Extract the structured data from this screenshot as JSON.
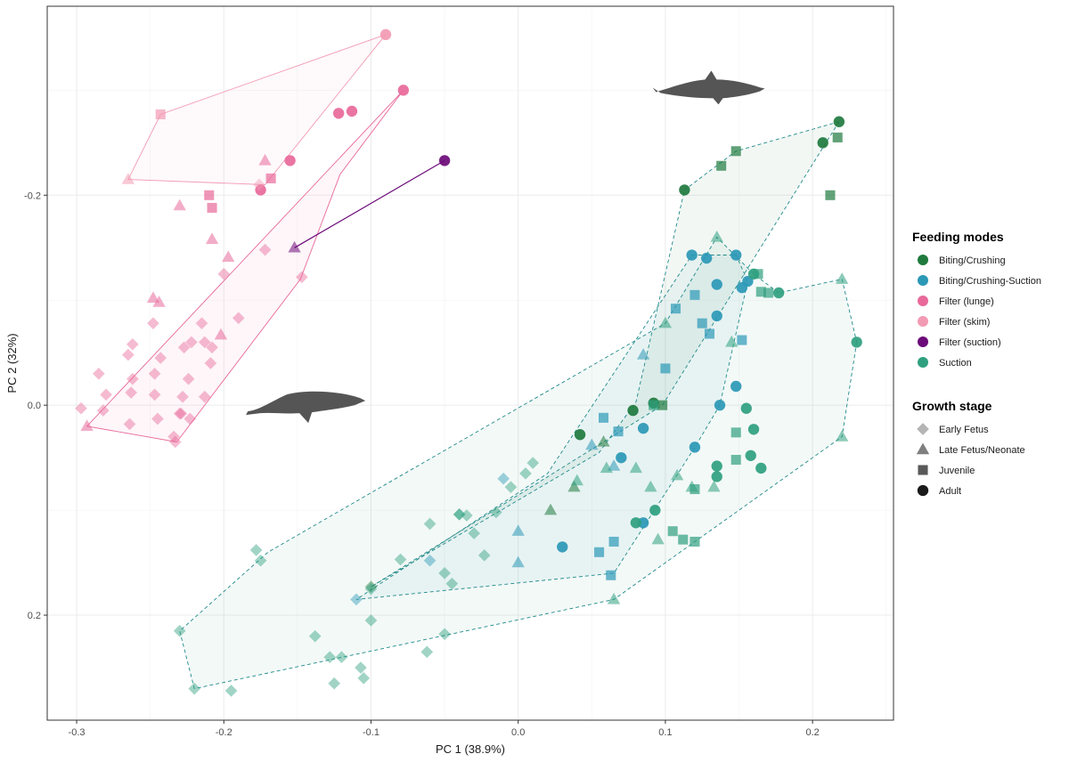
{
  "chart_data": {
    "type": "scatter",
    "title": "",
    "xlabel": "PC 1 (38.9%)",
    "ylabel": "PC 2 (32%)",
    "xlim": [
      -0.32,
      0.255
    ],
    "ylim": [
      -0.38,
      0.3
    ],
    "y_reversed": true,
    "x_ticks": [
      -0.3,
      -0.2,
      -0.1,
      0.0,
      0.1,
      0.2
    ],
    "x_tick_labels": [
      "-0.3",
      "-0.2",
      "-0.1",
      "0.0",
      "0.1",
      "0.2"
    ],
    "y_ticks": [
      -0.2,
      0.0,
      0.2
    ],
    "y_tick_labels": [
      "-0.2",
      "0.0",
      "0.2"
    ],
    "grid": true,
    "legend_position": "right",
    "legends": [
      {
        "title": "Feeding modes",
        "items": [
          {
            "label": "Biting/Crushing",
            "color": "#1f7a3e"
          },
          {
            "label": "Biting/Crushing-Suction",
            "color": "#2b98b6"
          },
          {
            "label": "Filter (lunge)",
            "color": "#e8699a"
          },
          {
            "label": "Filter (skim)",
            "color": "#f29ab3"
          },
          {
            "label": "Filter (suction)",
            "color": "#6b0a78"
          },
          {
            "label": "Suction",
            "color": "#2fa07f"
          }
        ]
      },
      {
        "title": "Growth stage",
        "items": [
          {
            "label": "Early Fetus",
            "shape": "diamond",
            "color": "#b5b5b5"
          },
          {
            "label": "Late Fetus/Neonate",
            "shape": "triangle",
            "color": "#7f7f7f"
          },
          {
            "label": "Juvenile",
            "shape": "square",
            "color": "#595959"
          },
          {
            "label": "Adult",
            "shape": "circle",
            "color": "#1a1a1a"
          }
        ]
      }
    ],
    "silhouettes": [
      {
        "name": "dolphin",
        "x": 0.13,
        "y": -0.3
      },
      {
        "name": "whale",
        "x": -0.145,
        "y": 0.0
      }
    ],
    "stage_opacity": {
      "diamond": 0.45,
      "triangle": 0.55,
      "square": 0.7,
      "circle": 0.92
    },
    "series": [
      {
        "name": "Filter (lunge)",
        "color": "#e8699a",
        "hull_style": "solid",
        "hull": [
          [
            -0.078,
            -0.3
          ],
          [
            -0.293,
            0.02
          ],
          [
            -0.232,
            0.035
          ],
          [
            -0.148,
            -0.12
          ],
          [
            -0.121,
            -0.22
          ]
        ],
        "points": [
          [
            -0.078,
            -0.3,
            "circle"
          ],
          [
            -0.113,
            -0.28,
            "circle"
          ],
          [
            -0.122,
            -0.278,
            "circle"
          ],
          [
            -0.175,
            -0.205,
            "circle"
          ],
          [
            -0.155,
            -0.233,
            "circle"
          ],
          [
            -0.21,
            -0.2,
            "square"
          ],
          [
            -0.208,
            -0.188,
            "square"
          ],
          [
            -0.168,
            -0.216,
            "square"
          ],
          [
            -0.23,
            -0.19,
            "triangle"
          ],
          [
            -0.172,
            -0.233,
            "triangle"
          ],
          [
            -0.208,
            -0.158,
            "triangle"
          ],
          [
            -0.197,
            -0.141,
            "triangle"
          ],
          [
            -0.248,
            -0.102,
            "triangle"
          ],
          [
            -0.244,
            -0.098,
            "triangle"
          ],
          [
            -0.202,
            -0.067,
            "triangle"
          ],
          [
            -0.293,
            0.02,
            "triangle"
          ],
          [
            -0.172,
            -0.148,
            "diamond"
          ],
          [
            -0.147,
            -0.122,
            "diamond"
          ],
          [
            -0.2,
            -0.125,
            "diamond"
          ],
          [
            -0.19,
            -0.083,
            "diamond"
          ],
          [
            -0.215,
            -0.078,
            "diamond"
          ],
          [
            -0.248,
            -0.078,
            "diamond"
          ],
          [
            -0.213,
            -0.06,
            "diamond"
          ],
          [
            -0.222,
            -0.06,
            "diamond"
          ],
          [
            -0.262,
            -0.058,
            "diamond"
          ],
          [
            -0.208,
            -0.055,
            "diamond"
          ],
          [
            -0.227,
            -0.055,
            "diamond"
          ],
          [
            -0.265,
            -0.048,
            "diamond"
          ],
          [
            -0.243,
            -0.045,
            "diamond"
          ],
          [
            -0.209,
            -0.04,
            "diamond"
          ],
          [
            -0.285,
            -0.03,
            "diamond"
          ],
          [
            -0.262,
            -0.025,
            "diamond"
          ],
          [
            -0.247,
            -0.03,
            "diamond"
          ],
          [
            -0.224,
            -0.025,
            "diamond"
          ],
          [
            -0.263,
            -0.012,
            "diamond"
          ],
          [
            -0.247,
            -0.01,
            "diamond"
          ],
          [
            -0.228,
            -0.008,
            "diamond"
          ],
          [
            -0.213,
            -0.008,
            "diamond"
          ],
          [
            -0.229,
            0.008,
            "diamond"
          ],
          [
            -0.23,
            0.008,
            "diamond"
          ],
          [
            -0.28,
            -0.01,
            "diamond"
          ],
          [
            -0.282,
            0.005,
            "diamond"
          ],
          [
            -0.264,
            0.018,
            "diamond"
          ],
          [
            -0.245,
            0.013,
            "diamond"
          ],
          [
            -0.234,
            0.03,
            "diamond"
          ],
          [
            -0.223,
            0.013,
            "diamond"
          ],
          [
            -0.233,
            0.035,
            "diamond"
          ],
          [
            -0.297,
            0.003,
            "diamond"
          ]
        ]
      },
      {
        "name": "Filter (skim)",
        "color": "#f29ab3",
        "hull_style": "solid",
        "hull": [
          [
            -0.09,
            -0.353
          ],
          [
            -0.243,
            -0.277
          ],
          [
            -0.265,
            -0.215
          ],
          [
            -0.172,
            -0.21
          ]
        ],
        "points": [
          [
            -0.09,
            -0.353,
            "circle"
          ],
          [
            -0.243,
            -0.277,
            "square"
          ],
          [
            -0.265,
            -0.215,
            "triangle"
          ],
          [
            -0.176,
            -0.21,
            "diamond"
          ]
        ]
      },
      {
        "name": "Filter (suction)",
        "color": "#6b0a78",
        "hull_style": "line",
        "hull": [
          [
            -0.05,
            -0.233
          ],
          [
            -0.152,
            -0.15
          ]
        ],
        "points": [
          [
            -0.05,
            -0.233,
            "circle"
          ],
          [
            -0.152,
            -0.15,
            "triangle"
          ]
        ]
      },
      {
        "name": "Biting/Crushing",
        "color": "#1f7a3e",
        "hull_style": "dashed",
        "hull": [
          [
            0.218,
            -0.27
          ],
          [
            0.148,
            -0.242
          ],
          [
            0.113,
            -0.205
          ],
          [
            0.08,
            -0.003
          ],
          [
            0.055,
            0.045
          ],
          [
            -0.1,
            0.173
          ],
          [
            0.098,
            0.0
          ]
        ],
        "points": [
          [
            0.218,
            -0.27,
            "circle"
          ],
          [
            0.207,
            -0.25,
            "circle"
          ],
          [
            0.113,
            -0.205,
            "circle"
          ],
          [
            0.217,
            -0.255,
            "square"
          ],
          [
            0.148,
            -0.242,
            "square"
          ],
          [
            0.138,
            -0.228,
            "square"
          ],
          [
            0.212,
            -0.2,
            "square"
          ],
          [
            0.098,
            0.0,
            "square"
          ],
          [
            0.078,
            0.005,
            "circle"
          ],
          [
            0.042,
            0.028,
            "circle"
          ],
          [
            0.092,
            -0.002,
            "circle"
          ],
          [
            0.058,
            0.035,
            "triangle"
          ],
          [
            0.022,
            0.1,
            "triangle"
          ],
          [
            0.038,
            0.078,
            "triangle"
          ],
          [
            -0.1,
            0.173,
            "diamond"
          ]
        ]
      },
      {
        "name": "Biting/Crushing-Suction",
        "color": "#2b98b6",
        "hull_style": "dashed",
        "hull": [
          [
            0.118,
            -0.143
          ],
          [
            0.148,
            -0.143
          ],
          [
            0.156,
            -0.118
          ],
          [
            0.137,
            0.0
          ],
          [
            0.12,
            0.04
          ],
          [
            0.065,
            0.16
          ],
          [
            -0.11,
            0.185
          ],
          [
            0.02,
            0.065
          ]
        ],
        "points": [
          [
            0.118,
            -0.143,
            "circle"
          ],
          [
            0.128,
            -0.14,
            "circle"
          ],
          [
            0.148,
            -0.143,
            "circle"
          ],
          [
            0.156,
            -0.118,
            "circle"
          ],
          [
            0.135,
            -0.115,
            "circle"
          ],
          [
            0.152,
            -0.112,
            "circle"
          ],
          [
            0.135,
            -0.085,
            "circle"
          ],
          [
            0.137,
            0.0,
            "circle"
          ],
          [
            0.148,
            -0.018,
            "circle"
          ],
          [
            0.12,
            0.04,
            "circle"
          ],
          [
            0.085,
            0.022,
            "circle"
          ],
          [
            0.07,
            0.05,
            "circle"
          ],
          [
            0.085,
            0.112,
            "circle"
          ],
          [
            0.03,
            0.135,
            "circle"
          ],
          [
            0.12,
            -0.105,
            "square"
          ],
          [
            0.107,
            -0.092,
            "square"
          ],
          [
            0.125,
            -0.078,
            "square"
          ],
          [
            0.13,
            -0.068,
            "square"
          ],
          [
            0.152,
            -0.062,
            "square"
          ],
          [
            0.1,
            -0.035,
            "square"
          ],
          [
            0.058,
            0.012,
            "square"
          ],
          [
            0.068,
            0.025,
            "square"
          ],
          [
            0.065,
            0.13,
            "square"
          ],
          [
            0.055,
            0.14,
            "square"
          ],
          [
            0.063,
            0.162,
            "square"
          ],
          [
            0.085,
            -0.048,
            "triangle"
          ],
          [
            0.05,
            0.038,
            "triangle"
          ],
          [
            0.065,
            0.058,
            "triangle"
          ],
          [
            0.0,
            0.12,
            "triangle"
          ],
          [
            0.0,
            0.15,
            "triangle"
          ],
          [
            -0.01,
            0.07,
            "diamond"
          ],
          [
            -0.11,
            0.185,
            "diamond"
          ],
          [
            -0.06,
            0.148,
            "diamond"
          ]
        ]
      },
      {
        "name": "Suction",
        "color": "#2fa07f",
        "hull_style": "dashed",
        "hull": [
          [
            0.23,
            -0.06
          ],
          [
            0.22,
            0.03
          ],
          [
            0.065,
            0.185
          ],
          [
            -0.22,
            0.27
          ],
          [
            -0.23,
            0.215
          ],
          [
            -0.17,
            0.14
          ],
          [
            0.1,
            -0.078
          ],
          [
            0.135,
            -0.16
          ],
          [
            0.16,
            -0.125
          ],
          [
            0.177,
            -0.107
          ],
          [
            0.22,
            -0.12
          ]
        ],
        "points": [
          [
            0.23,
            -0.06,
            "circle"
          ],
          [
            0.22,
            -0.12,
            "triangle"
          ],
          [
            0.22,
            0.03,
            "triangle"
          ],
          [
            0.177,
            -0.107,
            "circle"
          ],
          [
            0.16,
            -0.125,
            "circle"
          ],
          [
            0.165,
            -0.108,
            "square"
          ],
          [
            0.17,
            -0.107,
            "square"
          ],
          [
            0.163,
            -0.125,
            "square"
          ],
          [
            0.135,
            -0.16,
            "triangle"
          ],
          [
            0.145,
            -0.06,
            "triangle"
          ],
          [
            0.1,
            -0.078,
            "triangle"
          ],
          [
            0.155,
            0.003,
            "circle"
          ],
          [
            0.16,
            0.023,
            "circle"
          ],
          [
            0.158,
            0.048,
            "circle"
          ],
          [
            0.165,
            0.06,
            "circle"
          ],
          [
            0.135,
            0.058,
            "circle"
          ],
          [
            0.135,
            0.068,
            "circle"
          ],
          [
            0.148,
            0.052,
            "square"
          ],
          [
            0.148,
            0.026,
            "square"
          ],
          [
            0.12,
            0.08,
            "square"
          ],
          [
            0.105,
            0.12,
            "square"
          ],
          [
            0.112,
            0.128,
            "square"
          ],
          [
            0.12,
            0.13,
            "square"
          ],
          [
            0.108,
            0.067,
            "triangle"
          ],
          [
            0.09,
            0.078,
            "triangle"
          ],
          [
            0.118,
            0.078,
            "triangle"
          ],
          [
            0.133,
            0.078,
            "triangle"
          ],
          [
            0.093,
            0.1,
            "circle"
          ],
          [
            0.08,
            0.112,
            "circle"
          ],
          [
            0.095,
            0.128,
            "triangle"
          ],
          [
            0.065,
            0.185,
            "triangle"
          ],
          [
            -0.1,
            0.175,
            "diamond"
          ],
          [
            -0.08,
            0.147,
            "diamond"
          ],
          [
            -0.045,
            0.17,
            "diamond"
          ],
          [
            -0.05,
            0.16,
            "diamond"
          ],
          [
            -0.023,
            0.143,
            "diamond"
          ],
          [
            -0.03,
            0.122,
            "diamond"
          ],
          [
            -0.04,
            0.104,
            "diamond"
          ],
          [
            -0.06,
            0.113,
            "diamond"
          ],
          [
            -0.178,
            0.138,
            "diamond"
          ],
          [
            -0.175,
            0.148,
            "diamond"
          ],
          [
            -0.23,
            0.215,
            "diamond"
          ],
          [
            -0.22,
            0.27,
            "diamond"
          ],
          [
            -0.195,
            0.272,
            "diamond"
          ],
          [
            -0.138,
            0.22,
            "diamond"
          ],
          [
            -0.128,
            0.24,
            "diamond"
          ],
          [
            -0.12,
            0.24,
            "diamond"
          ],
          [
            -0.125,
            0.265,
            "diamond"
          ],
          [
            -0.105,
            0.26,
            "diamond"
          ],
          [
            -0.107,
            0.25,
            "diamond"
          ],
          [
            -0.062,
            0.235,
            "diamond"
          ],
          [
            -0.05,
            0.218,
            "diamond"
          ],
          [
            -0.1,
            0.205,
            "diamond"
          ],
          [
            0.005,
            0.065,
            "diamond"
          ],
          [
            0.01,
            0.055,
            "diamond"
          ],
          [
            -0.005,
            0.078,
            "diamond"
          ],
          [
            -0.04,
            0.104,
            "diamond"
          ],
          [
            -0.035,
            0.105,
            "diamond"
          ],
          [
            -0.015,
            0.102,
            "diamond"
          ],
          [
            0.08,
            0.06,
            "triangle"
          ],
          [
            0.04,
            0.072,
            "triangle"
          ],
          [
            0.06,
            0.06,
            "triangle"
          ],
          [
            0.092,
            0.0,
            "square"
          ]
        ]
      }
    ]
  }
}
